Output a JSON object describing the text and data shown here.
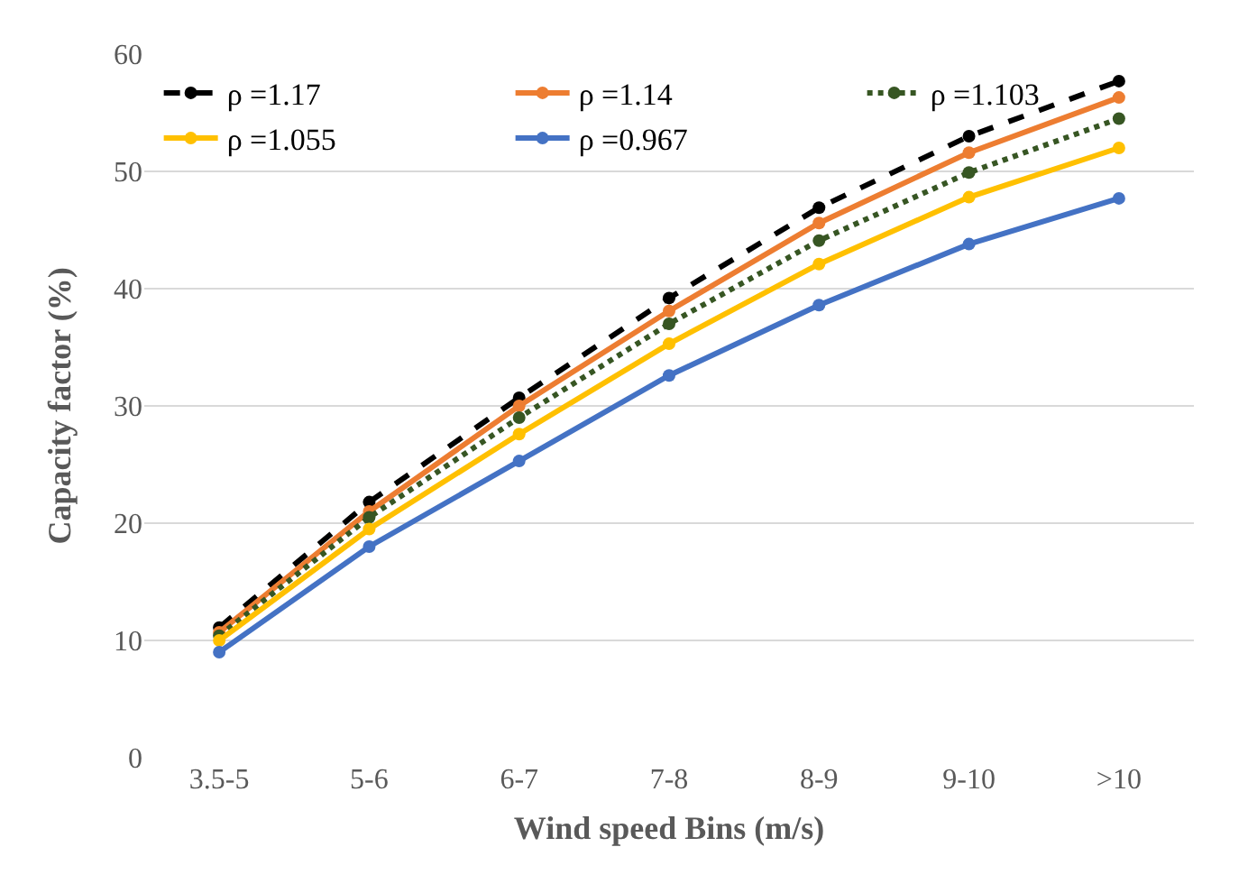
{
  "chart_data": {
    "type": "line",
    "xlabel": "Wind speed Bins (m/s)",
    "ylabel": "Capacity factor (%)",
    "categories": [
      "3.5-5",
      "5-6",
      "6-7",
      "7-8",
      "8-9",
      "9-10",
      ">10"
    ],
    "ylim": [
      0,
      60
    ],
    "yticks": [
      0,
      10,
      20,
      30,
      40,
      50,
      60
    ],
    "grid": "y",
    "legend": "top left",
    "marker": "circle",
    "series": [
      {
        "name": "ρ =1.17",
        "color": "#000000",
        "line_style": "dashed",
        "values": [
          11.1,
          21.8,
          30.7,
          39.2,
          46.9,
          53.0,
          57.7
        ]
      },
      {
        "name": "ρ =1.14",
        "color": "#ed7d31",
        "line_style": "solid",
        "values": [
          10.7,
          21.0,
          30.0,
          38.1,
          45.6,
          51.6,
          56.3
        ]
      },
      {
        "name": "ρ =1.103",
        "color": "#375623",
        "line_style": "dotted",
        "values": [
          10.4,
          20.5,
          29.0,
          37.0,
          44.1,
          49.9,
          54.5
        ]
      },
      {
        "name": "ρ =1.055",
        "color": "#ffc000",
        "line_style": "solid",
        "values": [
          10.0,
          19.5,
          27.6,
          35.3,
          42.1,
          47.8,
          52.0
        ]
      },
      {
        "name": "ρ =0.967",
        "color": "#4472c4",
        "line_style": "solid",
        "values": [
          9.0,
          18.0,
          25.3,
          32.6,
          38.6,
          43.8,
          47.7
        ]
      }
    ]
  }
}
